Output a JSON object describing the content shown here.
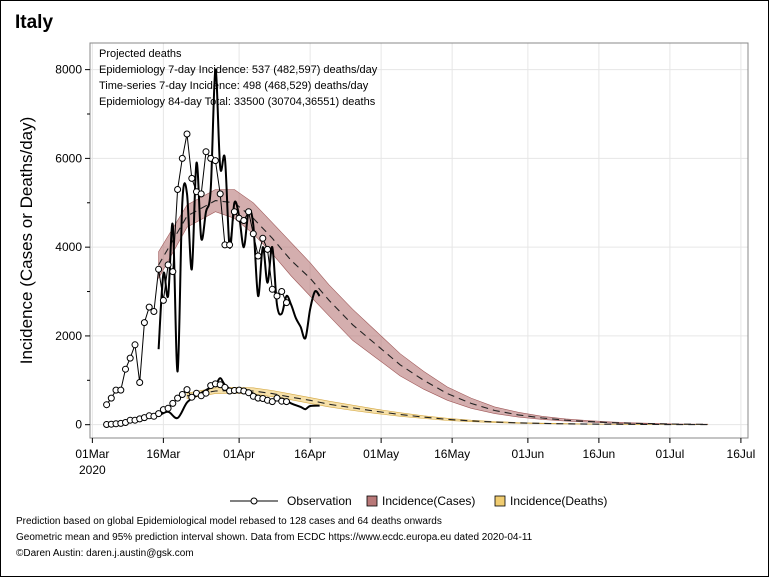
{
  "title": "Italy",
  "chart_data": {
    "type": "line",
    "title": "Italy",
    "ylabel": "Incidence (Cases or Deaths/day)",
    "xlabel": "",
    "ylim": [
      -300,
      8600
    ],
    "x_unit": "days since 01Mar2020",
    "xlim": [
      -0.5,
      138.5
    ],
    "yticks": [
      0,
      2000,
      4000,
      6000,
      8000
    ],
    "ytick_labels": [
      "0",
      "2000",
      "4000",
      "6000",
      "8000"
    ],
    "xticks": [
      0,
      15,
      31,
      46,
      61,
      76,
      92,
      107,
      122,
      137
    ],
    "xtick_labels": [
      "01Mar",
      "16Mar",
      "01Apr",
      "16Apr",
      "01May",
      "16May",
      "01Jun",
      "16Jun",
      "01Jul",
      "16Jul"
    ],
    "xtick_sublabel": "2020",
    "annotations": [
      "Projected deaths",
      "Epidemiology 7-day Incidence:  537 (482,597) deaths/day",
      "Time-series 7-day Incidence:  498 (468,529) deaths/day",
      "Epidemiology 84-day Total:  33500 (30704,36551) deaths"
    ],
    "legend": [
      {
        "label": "Observation",
        "kind": "line-marker",
        "color": "#000000"
      },
      {
        "label": "Incidence(Cases)",
        "kind": "swatch",
        "color": "#b87878"
      },
      {
        "label": "Incidence(Deaths)",
        "kind": "swatch",
        "color": "#f0cc70"
      }
    ],
    "series": [
      {
        "name": "Observed cases",
        "style": "markers",
        "x": [
          3,
          4,
          5,
          6,
          7,
          8,
          9,
          10,
          11,
          12,
          13,
          14,
          15,
          16,
          17,
          18,
          19,
          20,
          21,
          22,
          23,
          24,
          25,
          26,
          27,
          28,
          29,
          30,
          31,
          32,
          33,
          34,
          35,
          36,
          37,
          38,
          39,
          40,
          41
        ],
        "values": [
          450,
          600,
          780,
          780,
          1250,
          1500,
          1800,
          950,
          2300,
          2650,
          2550,
          3500,
          2800,
          3600,
          3450,
          5300,
          6000,
          6550,
          5550,
          5250,
          5200,
          6150,
          6000,
          5950,
          5200,
          4050,
          4050,
          4800,
          4650,
          4600,
          4800,
          4300,
          3800,
          4200,
          3950,
          3050,
          2900,
          3000,
          2750
        ]
      },
      {
        "name": "Observed deaths",
        "style": "markers",
        "x": [
          3,
          4,
          5,
          6,
          7,
          8,
          9,
          10,
          11,
          12,
          13,
          14,
          15,
          16,
          17,
          18,
          19,
          20,
          21,
          22,
          23,
          24,
          25,
          26,
          27,
          28,
          29,
          30,
          31,
          32,
          33,
          34,
          35,
          36,
          37,
          38,
          39,
          40,
          41
        ],
        "values": [
          5,
          10,
          20,
          30,
          50,
          100,
          100,
          130,
          160,
          200,
          190,
          250,
          340,
          370,
          480,
          600,
          680,
          790,
          620,
          710,
          650,
          710,
          880,
          920,
          900,
          840,
          760,
          770,
          780,
          760,
          720,
          640,
          600,
          590,
          550,
          520,
          600,
          530,
          520
        ]
      }
    ],
    "smooth_lines": [
      {
        "name": "Time-series fit (cases)",
        "x": [
          14,
          15,
          16,
          17,
          18,
          19,
          20,
          21,
          22,
          23,
          24,
          25,
          26,
          27,
          28,
          29,
          30,
          31,
          32,
          33,
          34,
          35,
          36,
          37,
          38,
          39,
          40,
          41,
          42,
          43,
          44,
          45,
          46,
          47,
          48
        ],
        "values": [
          1700,
          3400,
          2900,
          4500,
          1200,
          5000,
          5200,
          3500,
          5900,
          4200,
          4800,
          5300,
          8000,
          5800,
          6000,
          4000,
          5000,
          4700,
          4000,
          4800,
          4500,
          2900,
          4000,
          3200,
          4000,
          2700,
          2500,
          2900,
          2700,
          2400,
          2200,
          1950,
          2600,
          3000,
          2900
        ]
      },
      {
        "name": "Time-series fit (deaths)",
        "x": [
          14,
          16,
          18,
          20,
          22,
          24,
          26,
          27,
          28,
          30,
          32,
          34,
          36,
          38,
          40,
          42,
          44,
          45,
          46,
          48
        ],
        "values": [
          200,
          290,
          150,
          500,
          650,
          780,
          900,
          1050,
          900,
          750,
          800,
          700,
          580,
          550,
          590,
          480,
          400,
          350,
          420,
          430
        ]
      }
    ],
    "projections": [
      {
        "name": "Incidence(Cases)",
        "x": [
          14,
          20,
          26,
          30,
          34,
          38,
          42,
          46,
          50,
          55,
          60,
          65,
          70,
          75,
          80,
          85,
          90,
          95,
          100,
          105,
          110,
          115,
          120,
          125,
          130
        ],
        "mean": [
          3600,
          4700,
          5050,
          5000,
          4650,
          4200,
          3700,
          3300,
          2800,
          2250,
          1800,
          1350,
          1000,
          700,
          480,
          320,
          220,
          150,
          100,
          70,
          45,
          30,
          20,
          12,
          8
        ],
        "lower": [
          3300,
          4450,
          4800,
          4650,
          4300,
          3850,
          3350,
          2900,
          2450,
          1900,
          1500,
          1100,
          800,
          550,
          370,
          250,
          170,
          120,
          80,
          55,
          35,
          25,
          15,
          10,
          6
        ],
        "upper": [
          3900,
          4950,
          5300,
          5300,
          5000,
          4550,
          4100,
          3650,
          3150,
          2600,
          2100,
          1600,
          1200,
          850,
          600,
          400,
          280,
          190,
          130,
          90,
          60,
          40,
          26,
          16,
          10
        ]
      },
      {
        "name": "Incidence(Deaths)",
        "x": [
          20,
          26,
          30,
          34,
          38,
          42,
          46,
          50,
          55,
          60,
          65,
          70,
          75,
          80,
          85,
          90,
          95,
          100,
          105,
          110,
          115,
          120,
          125,
          130
        ],
        "mean": [
          650,
          760,
          770,
          760,
          700,
          620,
          550,
          460,
          380,
          300,
          230,
          170,
          120,
          85,
          60,
          40,
          28,
          20,
          14,
          10,
          7,
          5,
          3,
          2
        ],
        "lower": [
          590,
          700,
          710,
          690,
          630,
          560,
          480,
          400,
          320,
          250,
          190,
          140,
          95,
          68,
          48,
          32,
          22,
          16,
          11,
          8,
          5,
          4,
          2,
          1
        ],
        "upper": [
          710,
          830,
          840,
          830,
          770,
          690,
          610,
          530,
          440,
          350,
          270,
          200,
          145,
          102,
          72,
          50,
          34,
          24,
          17,
          12,
          8,
          6,
          4,
          3
        ]
      }
    ]
  },
  "footnotes": [
    "Prediction based on global Epidemiological model rebased to 128 cases and 64 deaths onwards",
    "Geometric mean and 95% prediction interval shown. Data from ECDC https://www.ecdc.europa.eu dated 2020-04-11",
    "©Daren Austin: daren.j.austin@gsk.com"
  ]
}
